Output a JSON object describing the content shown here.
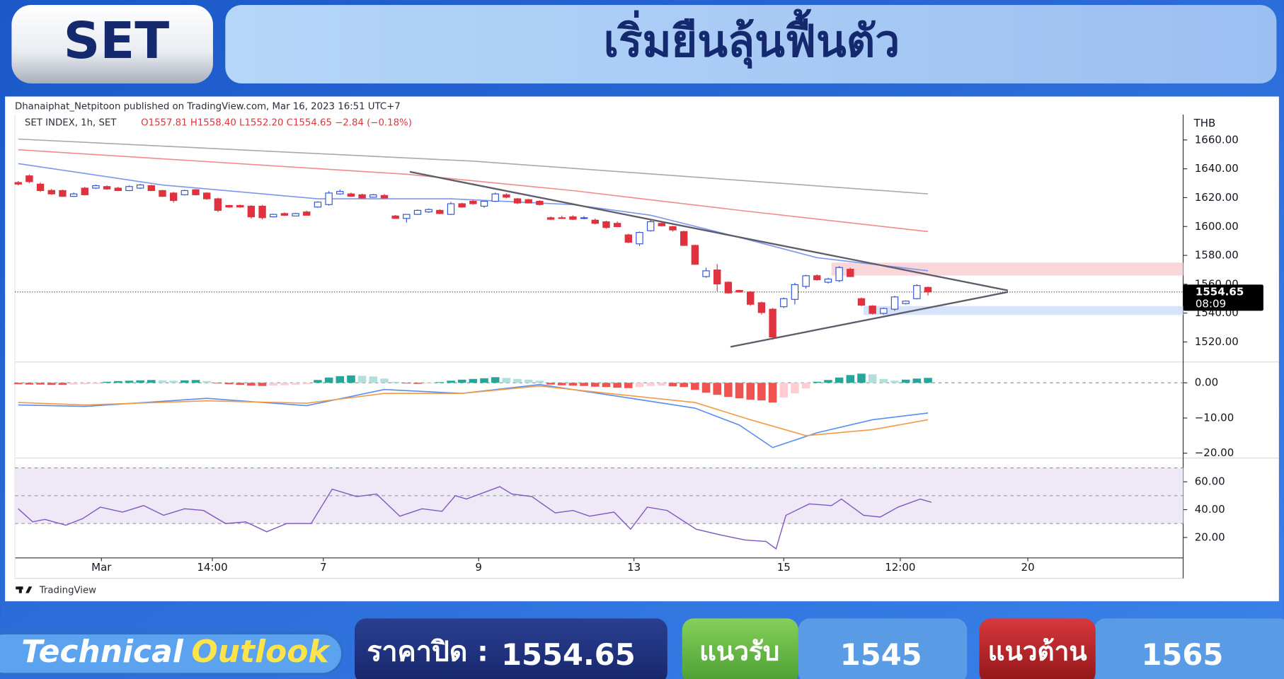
{
  "header": {
    "badge": "SET",
    "title": "เริ่มยืนลุ้นฟื้นตัว"
  },
  "chart_data": [
    {
      "type": "candlestick",
      "attribution": "Dhanaiphat_Netpitoon published on TradingView.com, Mar 16, 2023 16:51 UTC+7",
      "legend_symbol": "SET INDEX, 1h, SET",
      "legend_values": "O1557.81 H1558.40 L1552.20 C1554.65 −2.84 (−0.18%)",
      "currency": "THB",
      "watermark": "TradingView",
      "xlim": [
        -0.3,
        105
      ],
      "ylim": [
        1506.4,
        1677.6
      ],
      "yticks": [
        {
          "value": 1520,
          "label": "1520.00"
        },
        {
          "value": 1540,
          "label": "1540.00"
        },
        {
          "value": 1560,
          "label": "1560.00"
        },
        {
          "value": 1580,
          "label": "1580.00"
        },
        {
          "value": 1600,
          "label": "1600.00"
        },
        {
          "value": 1620,
          "label": "1620.00"
        },
        {
          "value": 1640,
          "label": "1640.00"
        },
        {
          "value": 1660,
          "label": "1660.00"
        }
      ],
      "xticks": [
        {
          "value": 7.5,
          "label": "Mar"
        },
        {
          "value": 17.5,
          "label": "14:00"
        },
        {
          "value": 27.5,
          "label": "7"
        },
        {
          "value": 41.5,
          "label": "9"
        },
        {
          "value": 55.5,
          "label": "13"
        },
        {
          "value": 69,
          "label": "15"
        },
        {
          "value": 79.5,
          "label": "12:00"
        },
        {
          "value": 91,
          "label": "20"
        }
      ],
      "up_color": "#2f55d4",
      "down_color": "#e0323e",
      "open": [
        1630.5,
        1635.1,
        1629.4,
        1625,
        1624.9,
        1620.9,
        1626.6,
        1626.6,
        1627.7,
        1626.6,
        1624.9,
        1626.6,
        1628.3,
        1624.9,
        1623.2,
        1622,
        1625.5,
        1623.2,
        1619.2,
        1614.6,
        1614.6,
        1614.1,
        1614.1,
        1606.7,
        1609,
        1607.3,
        1610.1,
        1613.5,
        1615.2,
        1622.6,
        1622.6,
        1622,
        1620.3,
        1621.5,
        1607.3,
        1605.6,
        1608.4,
        1610.1,
        1611.2,
        1608.4,
        1615.8,
        1617.5,
        1614.1,
        1617.5,
        1622,
        1619.2,
        1618.6,
        1617.5,
        1606.1,
        1606.1,
        1606.7,
        1605.6,
        1604.4,
        1603.3,
        1602.2,
        1594.2,
        1588,
        1597.1,
        1602.2,
        1599.9,
        1596.5,
        1586.9,
        1565.3,
        1569.9,
        1561.4,
        1555.7,
        1554.6,
        1547.2,
        1542.7,
        1544.4,
        1549.5,
        1558.5,
        1565.9,
        1561.4,
        1562.5,
        1570.4,
        1550,
        1544.9,
        1539.8,
        1542.7,
        1546.6,
        1550,
        1557.81
      ],
      "high": [
        1631.5,
        1636,
        1630.5,
        1626,
        1625.5,
        1623.5,
        1627.5,
        1629,
        1628.5,
        1627.5,
        1628.5,
        1629.5,
        1629,
        1625.5,
        1624,
        1625.5,
        1626,
        1623.8,
        1620,
        1615,
        1615.2,
        1614.8,
        1615,
        1608.8,
        1609.8,
        1609.5,
        1611,
        1617.5,
        1624.5,
        1625.5,
        1623.5,
        1622.8,
        1622.5,
        1622.5,
        1608,
        1608.5,
        1611.8,
        1612.5,
        1612,
        1617,
        1616.5,
        1618.5,
        1617.8,
        1623.5,
        1623,
        1619.8,
        1619.2,
        1618.2,
        1607,
        1607.5,
        1607.8,
        1607.2,
        1605.5,
        1604,
        1603.5,
        1595,
        1596.5,
        1604.5,
        1603.5,
        1600.5,
        1597,
        1587.5,
        1571.5,
        1574,
        1562,
        1556.2,
        1555.2,
        1548,
        1543.5,
        1550.8,
        1561,
        1566.5,
        1566.8,
        1564.5,
        1572.5,
        1571.5,
        1550.8,
        1545.5,
        1543.8,
        1552,
        1548.8,
        1560,
        1558.4
      ],
      "low": [
        1628.5,
        1630,
        1624,
        1622,
        1620.5,
        1620.5,
        1621.5,
        1626,
        1625.5,
        1624.5,
        1624.5,
        1626,
        1624.5,
        1620.5,
        1616.5,
        1621.5,
        1621.5,
        1618.5,
        1610,
        1613,
        1613,
        1605.5,
        1605,
        1606.3,
        1607.3,
        1607,
        1607.5,
        1613,
        1614.5,
        1622,
        1620.5,
        1619.2,
        1620,
        1619.5,
        1605.5,
        1602.7,
        1608,
        1609.5,
        1608.5,
        1608,
        1613,
        1615.2,
        1613,
        1617,
        1619.5,
        1615.5,
        1616,
        1614.5,
        1604.5,
        1605.2,
        1604.5,
        1605,
        1601.5,
        1598.5,
        1599.5,
        1588.5,
        1586.5,
        1596.5,
        1600,
        1596.5,
        1586.5,
        1573.5,
        1564.5,
        1555,
        1553.5,
        1554.2,
        1545,
        1539,
        1521.5,
        1543.5,
        1546,
        1557,
        1562.5,
        1560.5,
        1561.5,
        1565,
        1544.8,
        1539,
        1539,
        1541.5,
        1546,
        1549.5,
        1552.2
      ],
      "close": [
        1629.4,
        1631.1,
        1624.9,
        1622.6,
        1620.9,
        1622.6,
        1622,
        1628.3,
        1626,
        1624.9,
        1627.7,
        1628.8,
        1624.9,
        1620.9,
        1618,
        1624.9,
        1622,
        1619.2,
        1611.2,
        1613.5,
        1613.5,
        1606.7,
        1606.1,
        1608.4,
        1607.8,
        1609,
        1607.8,
        1616.9,
        1623.2,
        1624.3,
        1620.9,
        1619.8,
        1622,
        1619.8,
        1605.6,
        1608.4,
        1611.2,
        1611.8,
        1609,
        1615.8,
        1613.5,
        1615.8,
        1617.5,
        1622.6,
        1620.3,
        1616.3,
        1616.3,
        1615.2,
        1605,
        1605.6,
        1605,
        1606.1,
        1602.2,
        1599.3,
        1599.9,
        1589.1,
        1595.9,
        1603.3,
        1600.5,
        1597.6,
        1586.9,
        1573.8,
        1569.3,
        1560.2,
        1554,
        1554.6,
        1546.1,
        1540.4,
        1523.4,
        1550,
        1559.7,
        1565.9,
        1563.1,
        1563.6,
        1571.6,
        1565.3,
        1545.5,
        1539.8,
        1543.2,
        1551.2,
        1548.3,
        1559.1,
        1554.65
      ],
      "lines": [
        {
          "color": "#a9a9ad",
          "x": [
            0,
            41,
            82
          ],
          "values": [
            1660.6,
            1645.3,
            1622.6
          ]
        },
        {
          "color": "#f08c8c",
          "x": [
            0,
            35,
            50,
            65,
            82
          ],
          "values": [
            1653.2,
            1636.2,
            1624.9,
            1611.2,
            1596.5
          ]
        },
        {
          "color": "#7c98ee",
          "x": [
            0,
            13,
            27,
            39,
            50,
            57,
            65,
            72,
            82
          ],
          "values": [
            1643.6,
            1628.8,
            1619.2,
            1619.2,
            1615.2,
            1607.8,
            1592.5,
            1578.4,
            1569.3
          ]
        }
      ],
      "trendlines": [
        {
          "color": "#5c5c6a",
          "x": [
            35.3,
            89.2
          ],
          "values": [
            1637.9,
            1555.7
          ]
        },
        {
          "color": "#5c5c6a",
          "x": [
            64.2,
            89.2
          ],
          "values": [
            1516.6,
            1554.6
          ]
        }
      ],
      "zones": [
        {
          "color": "#f9d6d9",
          "x": [
            73.3,
            105
          ],
          "values": [
            1566,
            1575
          ]
        },
        {
          "color": "#d7e3fb",
          "x": [
            76.2,
            105
          ],
          "values": [
            1538.7,
            1544.9
          ]
        }
      ],
      "last_price": 1554.65,
      "countdown": "08:09"
    },
    {
      "type": "macd",
      "xlim": [
        -0.3,
        105
      ],
      "ylim": [
        -21.4,
        5.8
      ],
      "yticks": [
        {
          "value": -20,
          "label": "−20.00"
        },
        {
          "value": -10,
          "label": "−10.00"
        },
        {
          "value": 0,
          "label": "0.00"
        }
      ],
      "dashed_lines": [
        0
      ],
      "histogram": [
        -0.4,
        -0.5,
        -0.5,
        -0.6,
        -0.6,
        -0.5,
        -0.4,
        -0.3,
        0.3,
        0.5,
        0.6,
        0.7,
        0.8,
        0.7,
        0.6,
        0.7,
        0.8,
        0.5,
        -0.2,
        -0.4,
        -0.6,
        -0.8,
        -0.9,
        -0.8,
        -0.7,
        -0.6,
        -0.4,
        0.8,
        1.5,
        1.9,
        2.1,
        2.0,
        1.8,
        1.2,
        0.3,
        -0.2,
        -0.3,
        -0.2,
        0.2,
        0.6,
        0.9,
        1.1,
        1.3,
        1.6,
        1.4,
        1.1,
        0.9,
        0.6,
        -0.5,
        -0.7,
        -0.8,
        -0.9,
        -1.1,
        -1.2,
        -1.4,
        -1.5,
        -1.2,
        -0.9,
        -0.8,
        -1.0,
        -1.2,
        -2.0,
        -2.8,
        -3.4,
        -4.0,
        -4.4,
        -4.8,
        -5.0,
        -5.6,
        -4.2,
        -3.0,
        -1.6,
        0.3,
        0.8,
        1.5,
        2.2,
        2.6,
        2.4,
        1.1,
        0.6,
        0.9,
        1.2,
        1.4
      ],
      "hist_colors": {
        "rising_above": "#26a69a",
        "falling_above": "#b2dfdb",
        "falling_below": "#ef5350",
        "rising_below": "#ffcdd2"
      },
      "lines": [
        {
          "color": "#5b8def",
          "x": [
            0,
            6,
            17,
            26,
            33,
            40,
            47,
            54,
            61,
            65,
            68,
            72,
            77,
            82
          ],
          "values": [
            -6.3,
            -6.7,
            -4.4,
            -6.5,
            -1.9,
            -3.0,
            -0.5,
            -3.8,
            -7.2,
            -12,
            -18.4,
            -14.2,
            -10.5,
            -8.6
          ]
        },
        {
          "color": "#f39a45",
          "x": [
            0,
            6,
            17,
            26,
            33,
            40,
            47,
            54,
            61,
            66,
            71,
            77,
            82
          ],
          "values": [
            -5.6,
            -6.3,
            -5.1,
            -5.8,
            -3.0,
            -3.0,
            -0.9,
            -3.3,
            -5.6,
            -10.5,
            -15.0,
            -13.3,
            -10.5
          ]
        }
      ]
    },
    {
      "type": "rsi",
      "xlim": [
        -0.3,
        105
      ],
      "ylim": [
        5.3,
        77
      ],
      "yticks": [
        {
          "value": 20,
          "label": "20.00"
        },
        {
          "value": 40,
          "label": "40.00"
        },
        {
          "value": 60,
          "label": "60.00"
        }
      ],
      "band": [
        30,
        70
      ],
      "band_color": "#eee8f7",
      "dashed_lines": [
        30,
        50,
        70
      ],
      "color": "#7e57c2",
      "x": [
        0,
        1.3,
        2.4,
        4.3,
        5.8,
        7.4,
        9.4,
        11.3,
        13.1,
        15,
        16.7,
        18.7,
        20.5,
        22.4,
        24.2,
        26.4,
        28.3,
        30.5,
        32.3,
        34.4,
        36.4,
        38.2,
        39.4,
        40.4,
        43.4,
        44.5,
        46.3,
        48.4,
        50,
        51.5,
        53.7,
        55.2,
        56.7,
        58.5,
        61.1,
        63.3,
        65.5,
        67.4,
        68.3,
        69.2,
        71.3,
        73.3,
        74.2,
        76.2,
        77.7,
        79.3,
        81.3,
        82.3
      ],
      "values": [
        40.6,
        31.2,
        33,
        28.8,
        33.5,
        41.8,
        38.2,
        42.9,
        35.9,
        40.6,
        39.4,
        30,
        31.2,
        24.1,
        30,
        30,
        54.7,
        49.4,
        51.2,
        35.3,
        40.6,
        38.8,
        50,
        47.6,
        56.5,
        51.2,
        49.4,
        37.6,
        39.4,
        35.3,
        38.2,
        25.9,
        41.8,
        39.4,
        25.9,
        21.8,
        18.2,
        17.1,
        11.8,
        35.9,
        44.1,
        42.9,
        47.6,
        35.9,
        34.7,
        41.8,
        47.6,
        45.3
      ]
    }
  ],
  "footer": {
    "brand_1": "Technical",
    "brand_2": "Outlook",
    "close_label": "ราคาปิด :",
    "close": "1554.65",
    "support_label": "แนวรับ",
    "support": "1545",
    "resistance_label": "แนวต้าน",
    "resistance": "1565"
  }
}
